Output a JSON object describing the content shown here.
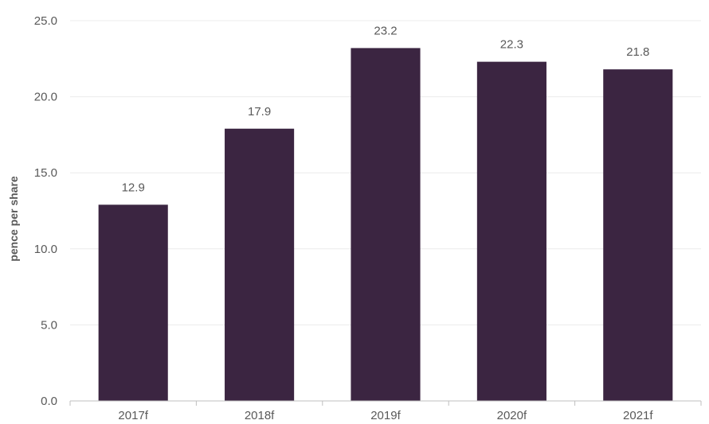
{
  "chart_data": {
    "type": "bar",
    "categories": [
      "2017f",
      "2018f",
      "2019f",
      "2020f",
      "2021f"
    ],
    "values": [
      12.9,
      17.9,
      23.2,
      22.3,
      21.8
    ],
    "data_labels": [
      "12.9",
      "17.9",
      "23.2",
      "22.3",
      "21.8"
    ],
    "title": "",
    "xlabel": "",
    "ylabel": "pence per share",
    "ylim": [
      0,
      25
    ],
    "yticks": [
      0,
      5,
      10,
      15,
      20,
      25
    ],
    "ytick_labels": [
      "0.0",
      "5.0",
      "10.0",
      "15.0",
      "20.0",
      "25.0"
    ],
    "grid": true,
    "legend": "none",
    "colors": {
      "bar": "#3b2541"
    }
  }
}
